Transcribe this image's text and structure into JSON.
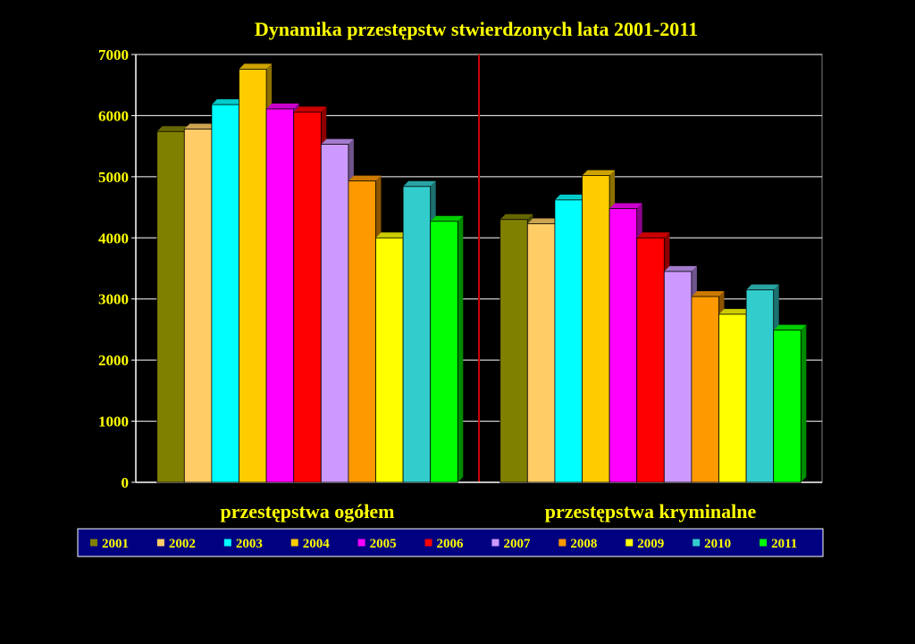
{
  "chart_data": {
    "type": "bar",
    "title": "Dynamika przestępstw stwierdzonych lata 2001-2011",
    "xlabel": "",
    "ylabel": "",
    "ylim": [
      0,
      7000
    ],
    "yticks": [
      0,
      1000,
      2000,
      3000,
      4000,
      5000,
      6000,
      7000
    ],
    "grid": true,
    "legend_position": "bottom",
    "categories": [
      "przestępstwa ogółem",
      "przestępstwa kryminalne"
    ],
    "series": [
      {
        "name": "2001",
        "color": "#808000",
        "values": [
          5740,
          4300
        ]
      },
      {
        "name": "2002",
        "color": "#ffcc66",
        "values": [
          5780,
          4230
        ]
      },
      {
        "name": "2003",
        "color": "#00ffff",
        "values": [
          6180,
          4620
        ]
      },
      {
        "name": "2004",
        "color": "#ffcc00",
        "values": [
          6760,
          5020
        ]
      },
      {
        "name": "2005",
        "color": "#ff00ff",
        "values": [
          6110,
          4480
        ]
      },
      {
        "name": "2006",
        "color": "#ff0000",
        "values": [
          6060,
          4000
        ]
      },
      {
        "name": "2007",
        "color": "#cc99ff",
        "values": [
          5530,
          3450
        ]
      },
      {
        "name": "2008",
        "color": "#ff9900",
        "values": [
          4930,
          3040
        ]
      },
      {
        "name": "2009",
        "color": "#ffff00",
        "values": [
          4000,
          2750
        ]
      },
      {
        "name": "2010",
        "color": "#33cccc",
        "values": [
          4840,
          3150
        ]
      },
      {
        "name": "2011",
        "color": "#00ff00",
        "values": [
          4270,
          2490
        ]
      }
    ]
  },
  "colors": {
    "background": "#000000",
    "text": "#ffff00",
    "grid": "#ffffff",
    "divider": "#cc0000",
    "legend_bg": "#000080"
  }
}
